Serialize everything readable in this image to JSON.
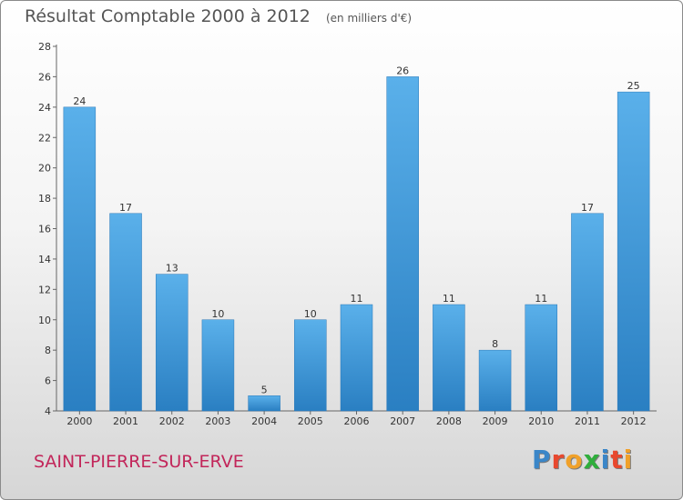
{
  "chart_data": {
    "type": "bar",
    "title": "Résultat Comptable 2000 à 2012",
    "subtitle": "(en milliers d'€)",
    "categories": [
      "2000",
      "2001",
      "2002",
      "2003",
      "2004",
      "2005",
      "2006",
      "2007",
      "2008",
      "2009",
      "2010",
      "2011",
      "2012"
    ],
    "values": [
      24,
      17,
      13,
      10,
      5,
      10,
      11,
      26,
      11,
      8,
      11,
      17,
      25
    ],
    "ylim": [
      4,
      28
    ],
    "yticks": [
      4,
      6,
      8,
      10,
      12,
      14,
      16,
      18,
      20,
      22,
      24,
      26,
      28
    ],
    "xlabel": "",
    "ylabel": "",
    "grid": false,
    "bar_color": "#4aa3e3",
    "bar_color_dark": "#2a7fc2"
  },
  "commune": "SAINT-PIERRE-SUR-ERVE",
  "brand": {
    "text": "Proxiti",
    "letters": [
      "P",
      "r",
      "o",
      "x",
      "i",
      "t",
      "i"
    ],
    "colors": [
      "#3a86c8",
      "#e8482e",
      "#f0a12a",
      "#2fae3c",
      "#3a86c8",
      "#e8482e",
      "#f0a12a"
    ]
  }
}
